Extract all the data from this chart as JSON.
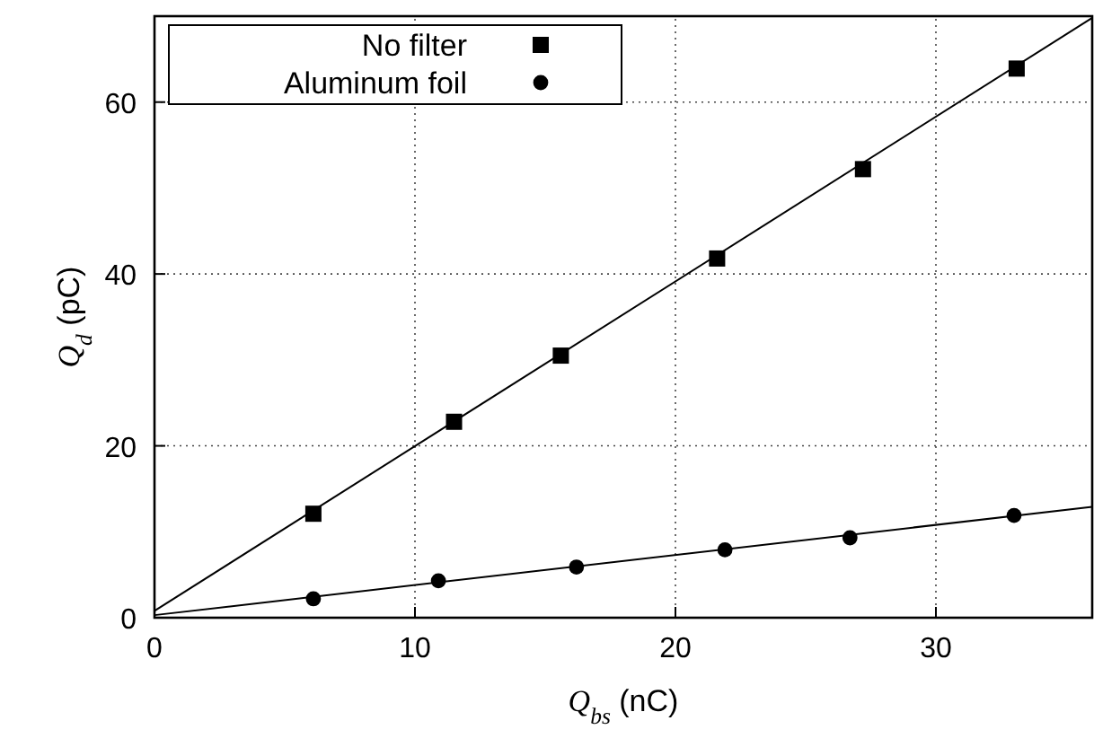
{
  "chart_data": {
    "type": "scatter",
    "xlabel": "Q$_{bs}$ (nC)",
    "ylabel": "Q$_{d}$ (pC)",
    "xlim": [
      0,
      36
    ],
    "ylim": [
      0,
      70
    ],
    "xticks": [
      0,
      10,
      20,
      30
    ],
    "yticks": [
      0,
      20,
      40,
      60
    ],
    "grid": true,
    "legend": "top left",
    "series": [
      {
        "name": "No filter",
        "color": "#000000",
        "marker": "square",
        "x": [
          6.1,
          11.5,
          15.6,
          21.6,
          27.2,
          33.1
        ],
        "values": [
          12.1,
          22.8,
          30.5,
          41.8,
          52.2,
          63.9
        ]
      },
      {
        "name": "Aluminum foil",
        "color": "#000000",
        "marker": "circle",
        "x": [
          6.1,
          10.9,
          16.2,
          21.9,
          26.7,
          33.0
        ],
        "values": [
          2.2,
          4.3,
          5.9,
          7.9,
          9.3,
          11.9
        ]
      },
      {
        "type": "line",
        "color": "#000000",
        "marker": "none",
        "x": [
          0,
          36
        ],
        "values": [
          0.8,
          69.8
        ]
      },
      {
        "type": "line",
        "color": "#000000",
        "marker": "none",
        "x": [
          0,
          36
        ],
        "values": [
          0.3,
          12.9
        ]
      }
    ]
  }
}
